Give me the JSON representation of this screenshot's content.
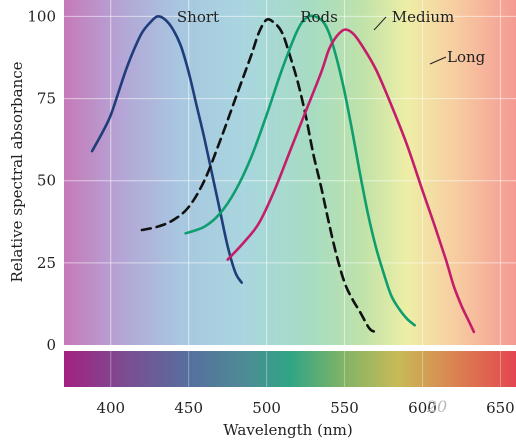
{
  "chart_data": {
    "type": "line",
    "xlabel": "Wavelength (nm)",
    "ylabel": "Relative spectral absorbance",
    "xlim": [
      370,
      660
    ],
    "ylim": [
      0,
      105
    ],
    "x_ticks": [
      400,
      450,
      500,
      550,
      600,
      650
    ],
    "x_tick_labels": [
      "400",
      "450",
      "500",
      "550",
      "600",
      "650"
    ],
    "y_ticks": [
      0,
      25,
      50,
      75,
      100
    ],
    "y_tick_labels": [
      "0",
      "25",
      "50",
      "75",
      "100"
    ],
    "grid": true,
    "watermark": "20",
    "series": [
      {
        "name": "Short",
        "color": "#1f3d7a",
        "dash": "solid",
        "points": [
          [
            388,
            59
          ],
          [
            395,
            65
          ],
          [
            400,
            70
          ],
          [
            405,
            77
          ],
          [
            410,
            84
          ],
          [
            415,
            90
          ],
          [
            420,
            95
          ],
          [
            425,
            98
          ],
          [
            430,
            100
          ],
          [
            435,
            99
          ],
          [
            440,
            96
          ],
          [
            445,
            91
          ],
          [
            450,
            83
          ],
          [
            455,
            73
          ],
          [
            460,
            63
          ],
          [
            465,
            52
          ],
          [
            470,
            41
          ],
          [
            475,
            30
          ],
          [
            480,
            22
          ],
          [
            484,
            19
          ]
        ]
      },
      {
        "name": "Rods",
        "color": "#111111",
        "dash": "dashed",
        "points": [
          [
            420,
            35
          ],
          [
            430,
            36
          ],
          [
            440,
            38
          ],
          [
            450,
            42
          ],
          [
            460,
            50
          ],
          [
            470,
            62
          ],
          [
            480,
            75
          ],
          [
            490,
            88
          ],
          [
            495,
            95
          ],
          [
            500,
            99
          ],
          [
            505,
            98
          ],
          [
            510,
            95
          ],
          [
            515,
            88
          ],
          [
            520,
            80
          ],
          [
            525,
            70
          ],
          [
            530,
            58
          ],
          [
            535,
            48
          ],
          [
            540,
            37
          ],
          [
            545,
            27
          ],
          [
            550,
            19
          ],
          [
            555,
            14
          ],
          [
            560,
            10
          ],
          [
            566,
            5
          ],
          [
            570,
            4
          ]
        ]
      },
      {
        "name": "Medium",
        "color": "#0f9e6e",
        "dash": "solid",
        "points": [
          [
            448,
            34
          ],
          [
            460,
            36
          ],
          [
            470,
            40
          ],
          [
            480,
            47
          ],
          [
            490,
            57
          ],
          [
            500,
            70
          ],
          [
            510,
            84
          ],
          [
            520,
            96
          ],
          [
            527,
            100
          ],
          [
            535,
            99
          ],
          [
            540,
            95
          ],
          [
            545,
            87
          ],
          [
            550,
            77
          ],
          [
            555,
            65
          ],
          [
            560,
            52
          ],
          [
            565,
            40
          ],
          [
            570,
            30
          ],
          [
            575,
            22
          ],
          [
            580,
            15
          ],
          [
            585,
            11
          ],
          [
            590,
            8
          ],
          [
            595,
            6
          ]
        ]
      },
      {
        "name": "Long",
        "color": "#c41e6a",
        "dash": "solid",
        "points": [
          [
            475,
            26
          ],
          [
            485,
            31
          ],
          [
            495,
            37
          ],
          [
            505,
            47
          ],
          [
            515,
            59
          ],
          [
            525,
            71
          ],
          [
            535,
            83
          ],
          [
            540,
            90
          ],
          [
            545,
            94
          ],
          [
            550,
            96
          ],
          [
            555,
            95
          ],
          [
            560,
            92
          ],
          [
            570,
            84
          ],
          [
            580,
            73
          ],
          [
            590,
            61
          ],
          [
            600,
            47
          ],
          [
            608,
            36
          ],
          [
            615,
            26
          ],
          [
            620,
            18
          ],
          [
            625,
            12
          ],
          [
            630,
            7
          ],
          [
            633,
            4
          ]
        ]
      }
    ]
  }
}
